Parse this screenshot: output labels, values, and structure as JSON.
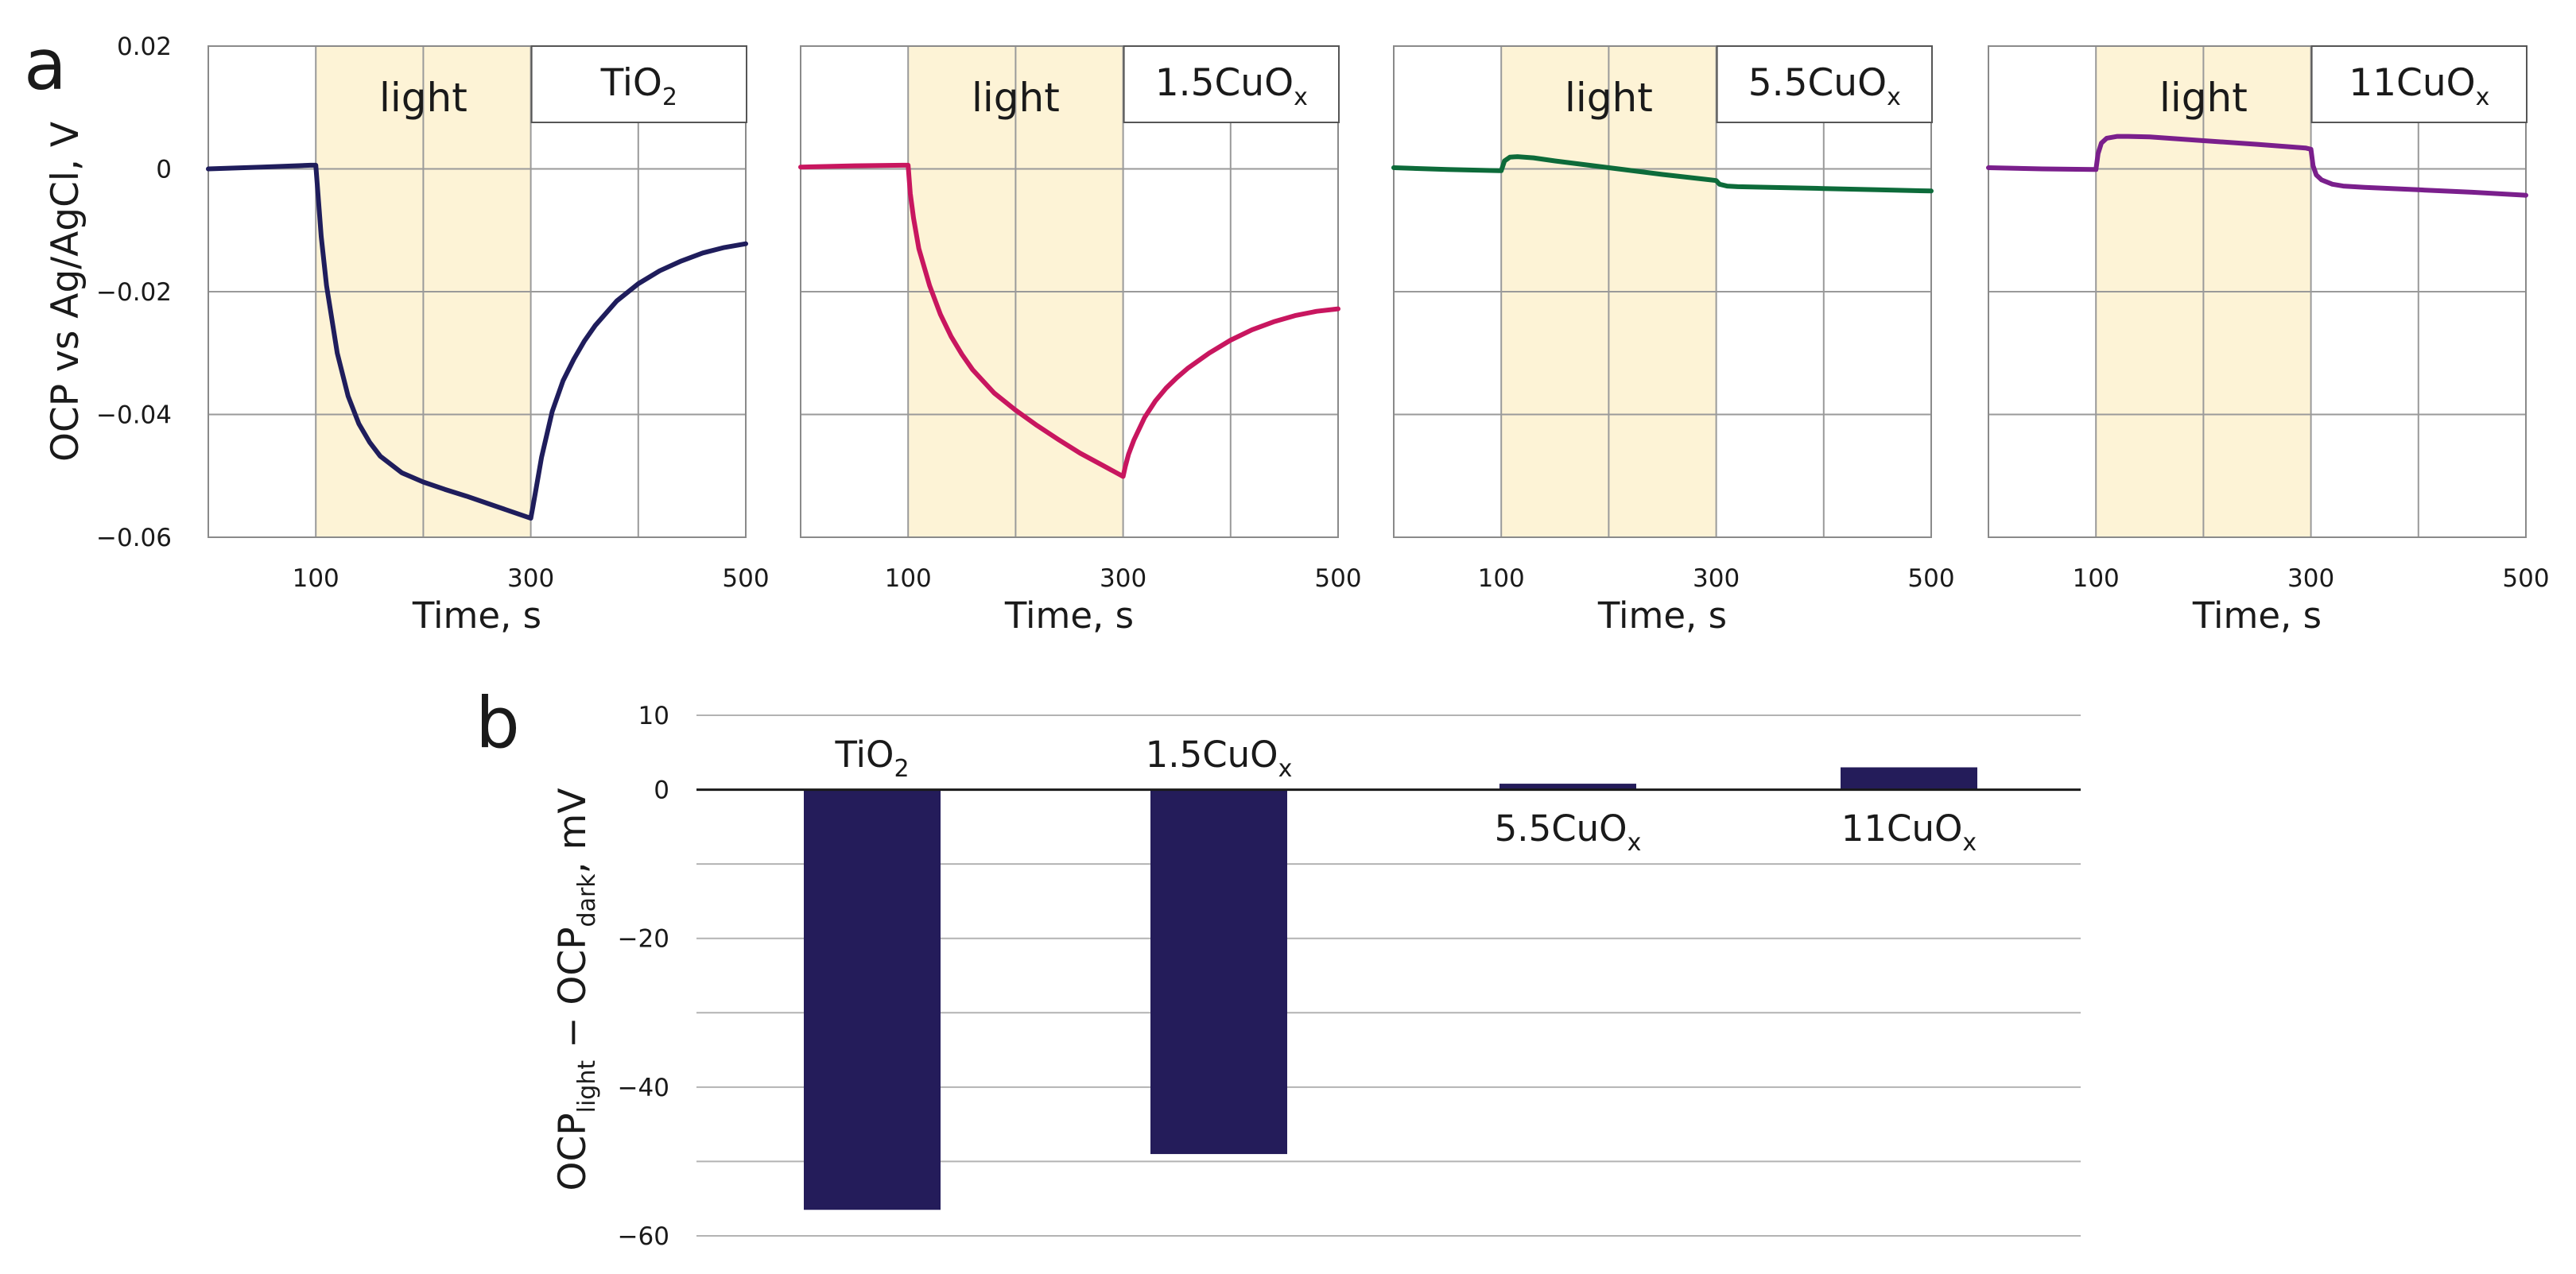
{
  "figure": {
    "panel_a_letter": "a",
    "panel_b_letter": "b"
  },
  "chart_data": [
    {
      "type": "line",
      "panel": "a",
      "sample": {
        "main": "TiO",
        "sub": "2"
      },
      "color": "#1f1d5c",
      "light_label": "light",
      "light_on": [
        100,
        300
      ],
      "xlabel": "Time, s",
      "ylabel": "OCP vs Ag/AgCl, V",
      "xlim": [
        0,
        500
      ],
      "ylim": [
        -0.06,
        0.02
      ],
      "xticks": [
        100,
        300,
        500
      ],
      "yticks": [
        0.02,
        0,
        -0.02,
        -0.04,
        -0.06
      ],
      "ytick_labels": [
        "0.02",
        "0",
        "−0.02",
        "−0.04",
        "−0.06"
      ],
      "x": [
        0,
        50,
        95,
        100,
        102,
        105,
        110,
        120,
        130,
        140,
        150,
        160,
        180,
        200,
        220,
        240,
        260,
        280,
        300,
        302,
        305,
        310,
        320,
        330,
        340,
        350,
        360,
        380,
        400,
        420,
        440,
        460,
        480,
        500
      ],
      "y": [
        0,
        0.0003,
        0.0006,
        0.0006,
        -0.004,
        -0.011,
        -0.019,
        -0.03,
        -0.037,
        -0.0415,
        -0.0445,
        -0.0468,
        -0.0495,
        -0.051,
        -0.0522,
        -0.0533,
        -0.0545,
        -0.0557,
        -0.0569,
        -0.055,
        -0.052,
        -0.047,
        -0.0395,
        -0.0345,
        -0.031,
        -0.028,
        -0.0255,
        -0.0215,
        -0.0187,
        -0.0166,
        -0.015,
        -0.0137,
        -0.0128,
        -0.0122
      ]
    },
    {
      "type": "line",
      "panel": "a",
      "sample": {
        "main": "1.5CuO",
        "sub": "x"
      },
      "color": "#c8165f",
      "light_label": "light",
      "light_on": [
        100,
        300
      ],
      "xlabel": "Time, s",
      "ylabel": "",
      "xlim": [
        0,
        500
      ],
      "ylim": [
        -0.06,
        0.02
      ],
      "xticks": [
        100,
        300,
        500
      ],
      "yticks": [
        0.02,
        0,
        -0.02,
        -0.04,
        -0.06
      ],
      "x": [
        0,
        50,
        95,
        100,
        102,
        105,
        110,
        120,
        130,
        140,
        150,
        160,
        180,
        200,
        220,
        240,
        260,
        280,
        300,
        302,
        305,
        310,
        320,
        330,
        340,
        350,
        360,
        380,
        400,
        420,
        440,
        460,
        480,
        500
      ],
      "y": [
        0.0003,
        0.0005,
        0.0006,
        0.0006,
        -0.004,
        -0.008,
        -0.013,
        -0.019,
        -0.0237,
        -0.0273,
        -0.0302,
        -0.0327,
        -0.0365,
        -0.0393,
        -0.0418,
        -0.0441,
        -0.0463,
        -0.0482,
        -0.0501,
        -0.0485,
        -0.0465,
        -0.0442,
        -0.0405,
        -0.0378,
        -0.0357,
        -0.034,
        -0.0325,
        -0.03,
        -0.0279,
        -0.0262,
        -0.0249,
        -0.0239,
        -0.0232,
        -0.0228
      ]
    },
    {
      "type": "line",
      "panel": "a",
      "sample": {
        "main": "5.5CuO",
        "sub": "x"
      },
      "color": "#0d6b3a",
      "light_label": "light",
      "light_on": [
        100,
        300
      ],
      "xlabel": "Time, s",
      "ylabel": "",
      "xlim": [
        0,
        500
      ],
      "ylim": [
        -0.06,
        0.02
      ],
      "xticks": [
        100,
        300,
        500
      ],
      "yticks": [
        0.02,
        0,
        -0.02,
        -0.04,
        -0.06
      ],
      "x": [
        0,
        50,
        98,
        100,
        103,
        108,
        115,
        130,
        150,
        200,
        250,
        295,
        300,
        303,
        310,
        320,
        350,
        400,
        450,
        500
      ],
      "y": [
        0.0002,
        -0.0001,
        -0.0003,
        -0.0003,
        0.0013,
        0.0019,
        0.002,
        0.0018,
        0.0013,
        0.0002,
        -0.0009,
        -0.0018,
        -0.0019,
        -0.0025,
        -0.0028,
        -0.0029,
        -0.003,
        -0.0032,
        -0.0034,
        -0.0036
      ]
    },
    {
      "type": "line",
      "panel": "a",
      "sample": {
        "main": "11CuO",
        "sub": "x"
      },
      "color": "#7a1f8c",
      "light_label": "light",
      "light_on": [
        100,
        300
      ],
      "xlabel": "Time, s",
      "ylabel": "",
      "xlim": [
        0,
        500
      ],
      "ylim": [
        -0.06,
        0.02
      ],
      "xticks": [
        100,
        300,
        500
      ],
      "yticks": [
        0.02,
        0,
        -0.02,
        -0.04,
        -0.06
      ],
      "x": [
        0,
        50,
        98,
        100,
        102,
        105,
        110,
        120,
        130,
        150,
        200,
        250,
        295,
        300,
        302,
        305,
        310,
        320,
        330,
        350,
        400,
        450,
        500
      ],
      "y": [
        0.0002,
        0,
        -0.0001,
        -0.0001,
        0.0025,
        0.0042,
        0.005,
        0.0053,
        0.0053,
        0.0052,
        0.0046,
        0.004,
        0.0034,
        0.0032,
        0.0005,
        -0.001,
        -0.0018,
        -0.0025,
        -0.0028,
        -0.003,
        -0.0034,
        -0.0038,
        -0.0043
      ]
    },
    {
      "type": "bar",
      "panel": "b",
      "categories": [
        {
          "main": "TiO",
          "sub": "2"
        },
        {
          "main": "1.5CuO",
          "sub": "x"
        },
        {
          "main": "5.5CuO",
          "sub": "x"
        },
        {
          "main": "11CuO",
          "sub": "x"
        }
      ],
      "values": [
        -56.5,
        -49,
        0.8,
        3
      ],
      "color": "#241c5a",
      "ylabel": {
        "pre": "OCP",
        "sub1": "light",
        "mid": " − OCP",
        "sub2": "dark",
        "post": ", mV"
      },
      "ylim": [
        -60,
        10
      ],
      "yticks": [
        10,
        0,
        -20,
        -40,
        -60
      ],
      "ytick_labels": [
        "10",
        "0",
        "−20",
        "−40",
        "−60"
      ],
      "gridlines": [
        10,
        0,
        -10,
        -20,
        -30,
        -40,
        -50,
        -60
      ]
    }
  ]
}
